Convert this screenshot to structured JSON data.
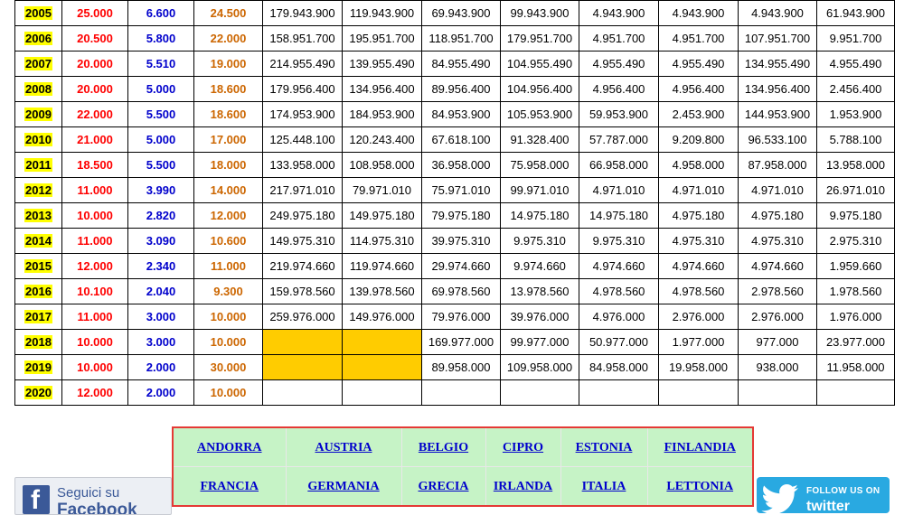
{
  "table": {
    "rows": [
      {
        "year": "2005",
        "c1": "25.000",
        "c2": "6.600",
        "c3": "24.500",
        "cells": [
          "179.943.900",
          "119.943.900",
          "69.943.900",
          "99.943.900",
          "4.943.900",
          "4.943.900",
          "4.943.900",
          "61.943.900"
        ]
      },
      {
        "year": "2006",
        "c1": "20.500",
        "c2": "5.800",
        "c3": "22.000",
        "cells": [
          "158.951.700",
          "195.951.700",
          "118.951.700",
          "179.951.700",
          "4.951.700",
          "4.951.700",
          "107.951.700",
          "9.951.700"
        ]
      },
      {
        "year": "2007",
        "c1": "20.000",
        "c2": "5.510",
        "c3": "19.000",
        "cells": [
          "214.955.490",
          "139.955.490",
          "84.955.490",
          "104.955.490",
          "4.955.490",
          "4.955.490",
          "134.955.490",
          "4.955.490"
        ]
      },
      {
        "year": "2008",
        "c1": "20.000",
        "c2": "5.000",
        "c3": "18.600",
        "cells": [
          "179.956.400",
          "134.956.400",
          "89.956.400",
          "104.956.400",
          "4.956.400",
          "4.956.400",
          "134.956.400",
          "2.456.400"
        ]
      },
      {
        "year": "2009",
        "c1": "22.000",
        "c2": "5.500",
        "c3": "18.600",
        "cells": [
          "174.953.900",
          "184.953.900",
          "84.953.900",
          "105.953.900",
          "59.953.900",
          "2.453.900",
          "144.953.900",
          "1.953.900"
        ]
      },
      {
        "year": "2010",
        "c1": "21.000",
        "c2": "5.000",
        "c3": "17.000",
        "cells": [
          "125.448.100",
          "120.243.400",
          "67.618.100",
          "91.328.400",
          "57.787.000",
          "9.209.800",
          "96.533.100",
          "5.788.100"
        ]
      },
      {
        "year": "2011",
        "c1": "18.500",
        "c2": "5.500",
        "c3": "18.000",
        "cells": [
          "133.958.000",
          "108.958.000",
          "36.958.000",
          "75.958.000",
          "66.958.000",
          "4.958.000",
          "87.958.000",
          "13.958.000"
        ]
      },
      {
        "year": "2012",
        "c1": "11.000",
        "c2": "3.990",
        "c3": "14.000",
        "cells": [
          "217.971.010",
          "79.971.010",
          "75.971.010",
          "99.971.010",
          "4.971.010",
          "4.971.010",
          "4.971.010",
          "26.971.010"
        ]
      },
      {
        "year": "2013",
        "c1": "10.000",
        "c2": "2.820",
        "c3": "12.000",
        "cells": [
          "249.975.180",
          "149.975.180",
          "79.975.180",
          "14.975.180",
          "14.975.180",
          "4.975.180",
          "4.975.180",
          "9.975.180"
        ]
      },
      {
        "year": "2014",
        "c1": "11.000",
        "c2": "3.090",
        "c3": "10.600",
        "cells": [
          "149.975.310",
          "114.975.310",
          "39.975.310",
          "9.975.310",
          "9.975.310",
          "4.975.310",
          "4.975.310",
          "2.975.310"
        ]
      },
      {
        "year": "2015",
        "c1": "12.000",
        "c2": "2.340",
        "c3": "11.000",
        "cells": [
          "219.974.660",
          "119.974.660",
          "29.974.660",
          "9.974.660",
          "4.974.660",
          "4.974.660",
          "4.974.660",
          "1.959.660"
        ]
      },
      {
        "year": "2016",
        "c1": "10.100",
        "c2": "2.040",
        "c3": "9.300",
        "cells": [
          "159.978.560",
          "139.978.560",
          "69.978.560",
          "13.978.560",
          "4.978.560",
          "4.978.560",
          "2.978.560",
          "1.978.560"
        ]
      },
      {
        "year": "2017",
        "c1": "11.000",
        "c2": "3.000",
        "c3": "10.000",
        "cells": [
          "259.976.000",
          "149.976.000",
          "79.976.000",
          "39.976.000",
          "4.976.000",
          "2.976.000",
          "2.976.000",
          "1.976.000"
        ]
      },
      {
        "year": "2018",
        "c1": "10.000",
        "c2": "3.000",
        "c3": "10.000",
        "cells": [
          "",
          "",
          "169.977.000",
          "99.977.000",
          "50.977.000",
          "1.977.000",
          "977.000",
          "23.977.000"
        ]
      },
      {
        "year": "2019",
        "c1": "10.000",
        "c2": "2.000",
        "c3": "30.000",
        "cells": [
          "",
          "",
          "89.958.000",
          "109.958.000",
          "84.958.000",
          "19.958.000",
          "938.000",
          "11.958.000"
        ]
      },
      {
        "year": "2020",
        "c1": "12.000",
        "c2": "2.000",
        "c3": "10.000",
        "cells": [
          "",
          "",
          "",
          "",
          "",
          "",
          "",
          ""
        ]
      }
    ]
  },
  "countries": {
    "rows": [
      [
        "ANDORRA",
        "AUSTRIA",
        "BELGIO",
        "CIPRO",
        "ESTONIA",
        "FINLANDIA"
      ],
      [
        "FRANCIA",
        "GERMANIA",
        "GRECIA",
        "IRLANDA",
        "ITALIA",
        "LETTONIA"
      ]
    ]
  },
  "social": {
    "facebook_line1": "Seguici su",
    "facebook_line2": "Facebook",
    "twitter_line1": "FOLLOW US ON",
    "twitter_line2": "twitter"
  },
  "colors": {
    "year_highlight": "#ffff00",
    "col1_text": "#ff0000",
    "col2_text": "#0000cc",
    "col3_text": "#cc6600",
    "empty_highlight": "#ffcc00",
    "country_bg": "#c6f3c6",
    "country_border": "#e53935",
    "link": "#0000cc"
  }
}
